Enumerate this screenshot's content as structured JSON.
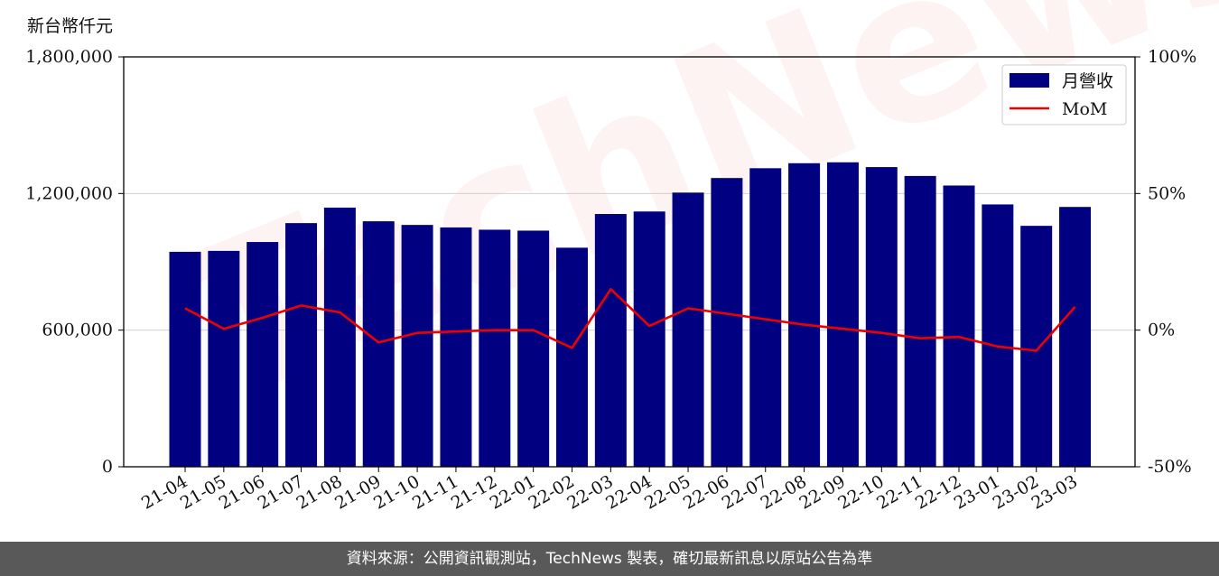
{
  "unit_label": "新台幣仟元",
  "footer_text": "資料來源：公開資訊觀測站，TechNews 製表，確切最新訊息以原站公告為準",
  "watermark_text": "TechNews",
  "chart_data": {
    "type": "bar",
    "categories": [
      "21-04",
      "21-05",
      "21-06",
      "21-07",
      "21-08",
      "21-09",
      "21-10",
      "21-11",
      "21-12",
      "22-01",
      "22-02",
      "22-03",
      "22-04",
      "22-05",
      "22-06",
      "22-07",
      "22-08",
      "22-09",
      "22-10",
      "22-11",
      "22-12",
      "23-01",
      "23-02",
      "23-03"
    ],
    "series": [
      {
        "name": "月營收",
        "type": "bar",
        "axis": "left",
        "color": "#000080",
        "values": [
          944000,
          948000,
          987000,
          1070000,
          1138000,
          1078000,
          1062000,
          1051000,
          1041000,
          1037000,
          962000,
          1110000,
          1121000,
          1204000,
          1268000,
          1311000,
          1333000,
          1337000,
          1316000,
          1277000,
          1235000,
          1152000,
          1058000,
          1141000
        ]
      },
      {
        "name": "MoM",
        "type": "line",
        "axis": "right",
        "color": "#ee0000",
        "values": [
          8.0,
          0.5,
          4.5,
          9.0,
          6.5,
          -4.5,
          -1.0,
          -0.5,
          0.0,
          0.0,
          -6.5,
          15.0,
          1.5,
          8.0,
          6.0,
          4.0,
          2.0,
          0.5,
          -1.0,
          -3.0,
          -2.5,
          -6.0,
          -7.5,
          8.5
        ]
      }
    ],
    "y_left": {
      "ylim": [
        0,
        1800000
      ],
      "ticks": [
        0,
        600000,
        1200000,
        1800000
      ],
      "tick_labels": [
        "0",
        "600,000",
        "1,200,000",
        "1,800,000"
      ]
    },
    "y_right": {
      "ylim": [
        -50,
        100
      ],
      "ticks": [
        -50,
        0,
        50,
        100
      ],
      "tick_labels": [
        "-50%",
        "0%",
        "50%",
        "100%"
      ]
    },
    "grid": "horizontal",
    "legend_position": "top-right",
    "title": "",
    "xlabel": "",
    "ylabel": ""
  }
}
